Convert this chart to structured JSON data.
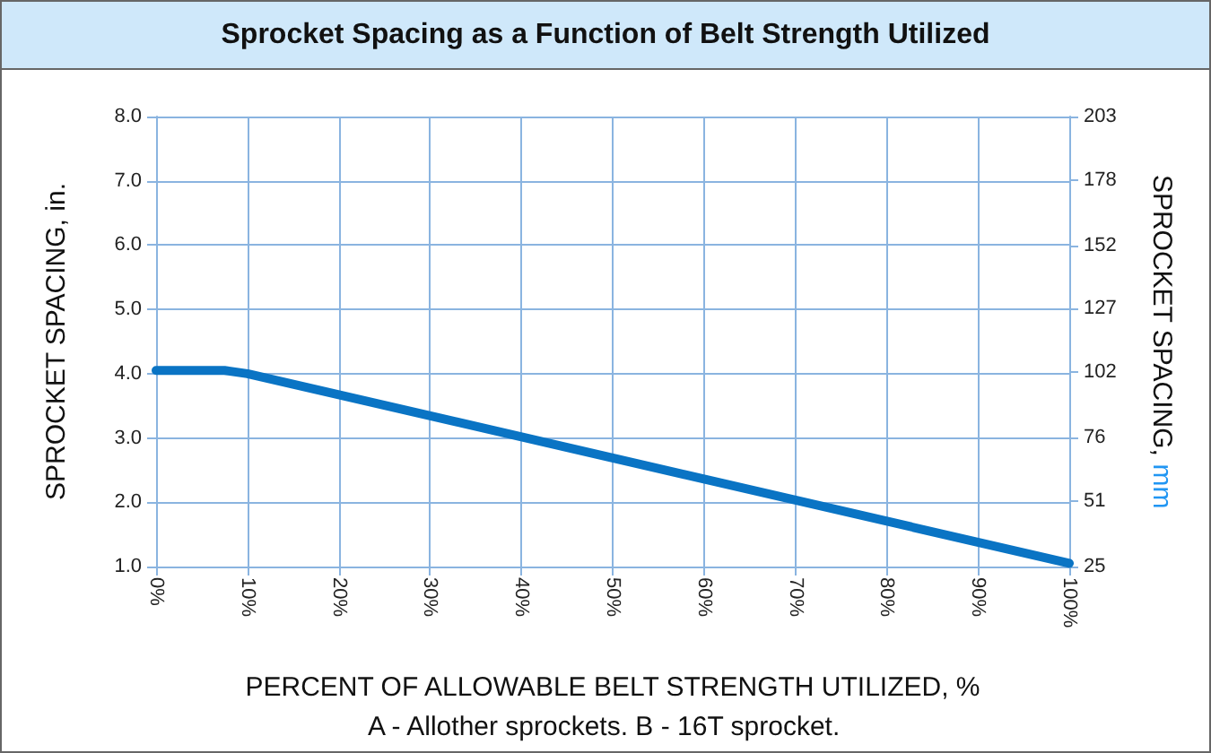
{
  "chart_data": {
    "type": "line",
    "title": "Sprocket Spacing as a Function of Belt Strength Utilized",
    "xlabel": "PERCENT OF ALLOWABLE BELT STRENGTH UTILIZED, %",
    "ylabel": "SPROCKET SPACING, in.",
    "y2label": "SPROCKET SPACING, mm",
    "annotations": [
      "A - Allother sprockets. B - 16T sprocket."
    ],
    "x": [
      0,
      7.5,
      10,
      100
    ],
    "series": [
      {
        "color": "#0a74c4",
        "values": [
          4.05,
          4.05,
          4.0,
          1.05
        ]
      }
    ],
    "xlim": [
      0,
      100
    ],
    "xticks": [
      {
        "value": 0,
        "label": "0%"
      },
      {
        "value": 10,
        "label": "10%"
      },
      {
        "value": 20,
        "label": "20%"
      },
      {
        "value": 30,
        "label": "30%"
      },
      {
        "value": 40,
        "label": "40%"
      },
      {
        "value": 50,
        "label": "50%"
      },
      {
        "value": 60,
        "label": "60%"
      },
      {
        "value": 70,
        "label": "70%"
      },
      {
        "value": 80,
        "label": "80%"
      },
      {
        "value": 90,
        "label": "90%"
      },
      {
        "value": 100,
        "label": "100%"
      }
    ],
    "ylim": [
      1,
      8
    ],
    "yticks": [
      {
        "value": 1,
        "label": "1.0"
      },
      {
        "value": 2,
        "label": "2.0"
      },
      {
        "value": 3,
        "label": "3.0"
      },
      {
        "value": 4,
        "label": "4.0"
      },
      {
        "value": 5,
        "label": "5.0"
      },
      {
        "value": 6,
        "label": "6.0"
      },
      {
        "value": 7,
        "label": "7.0"
      },
      {
        "value": 8,
        "label": "8.0"
      }
    ],
    "y2lim": [
      25,
      203
    ],
    "y2ticks": [
      25,
      51,
      76,
      102,
      127,
      152,
      178,
      203
    ],
    "grid": true,
    "marker": "none",
    "line_style": "solid"
  }
}
